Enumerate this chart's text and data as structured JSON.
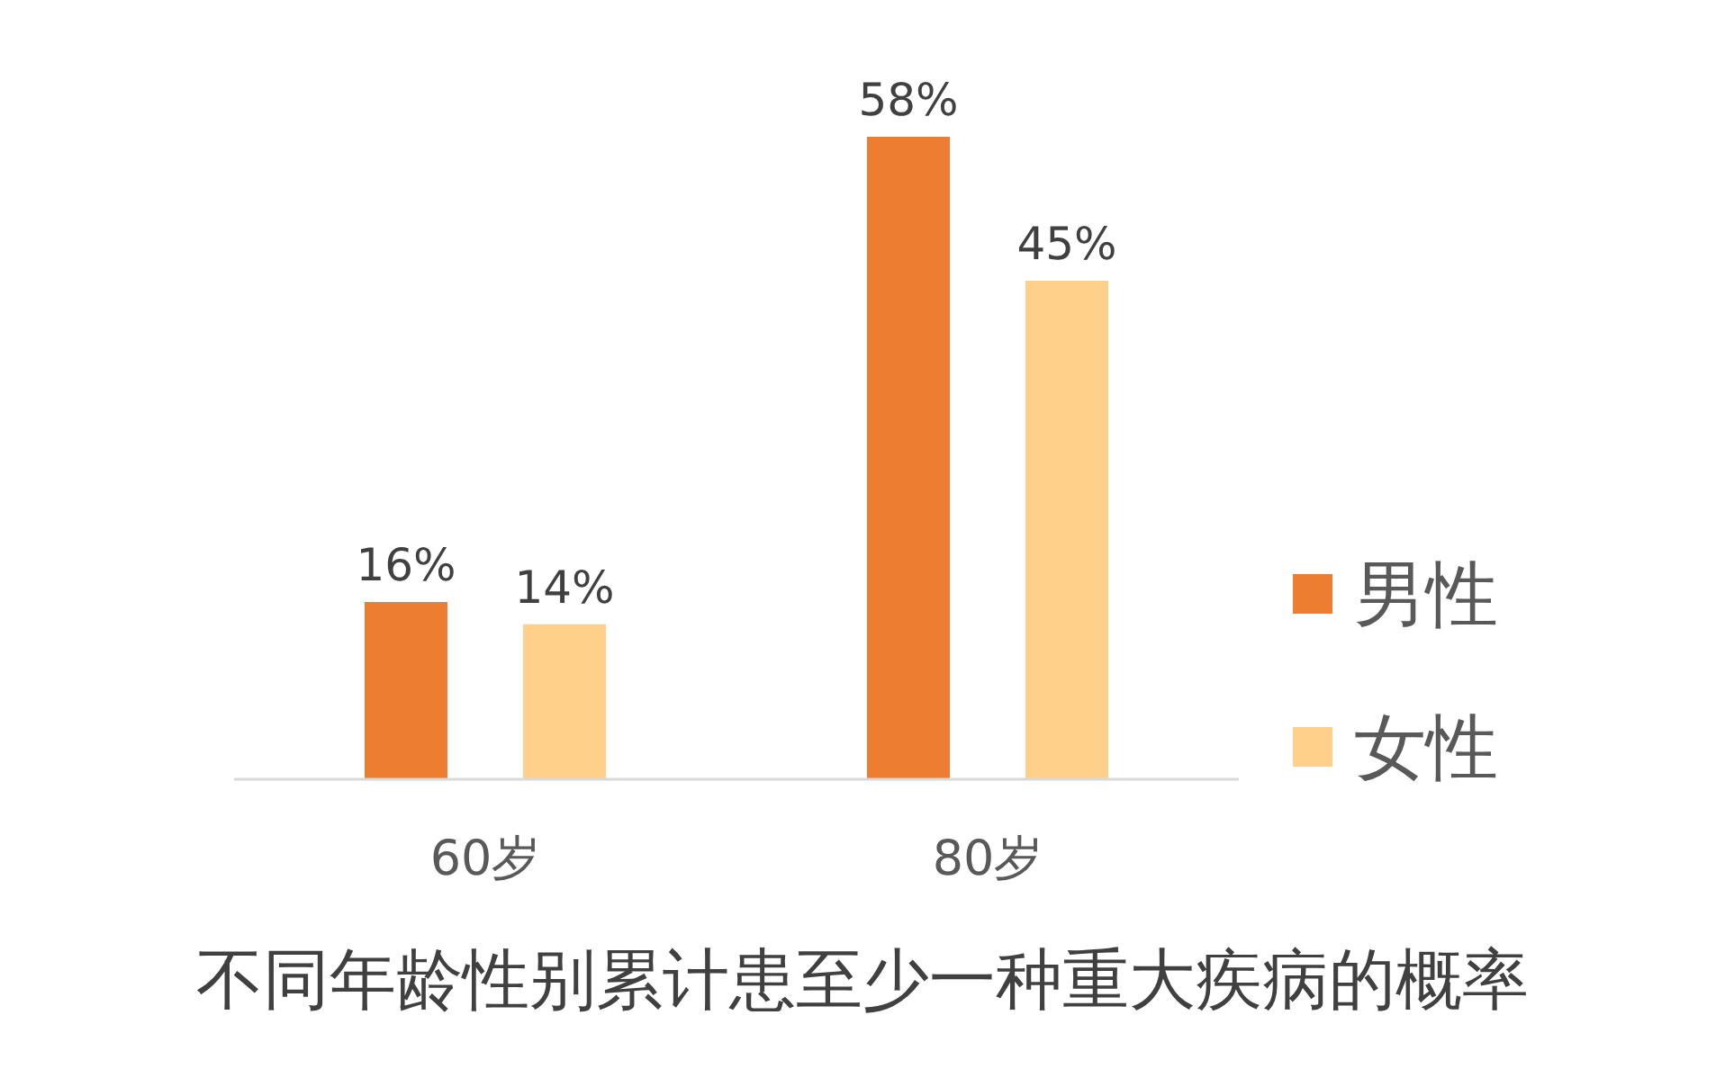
{
  "chart_data": {
    "type": "bar",
    "title": "不同年龄性别累计患至少一种重大疾病的概率",
    "categories": [
      "60岁",
      "80岁"
    ],
    "series": [
      {
        "name": "男性",
        "color": "#ed7d31",
        "values": [
          16,
          58
        ],
        "value_labels": [
          "16%",
          "58%"
        ]
      },
      {
        "name": "女性",
        "color": "#ffd08a",
        "values": [
          14,
          45
        ],
        "value_labels": [
          "14%",
          "45%"
        ]
      }
    ],
    "legend": "right"
  }
}
